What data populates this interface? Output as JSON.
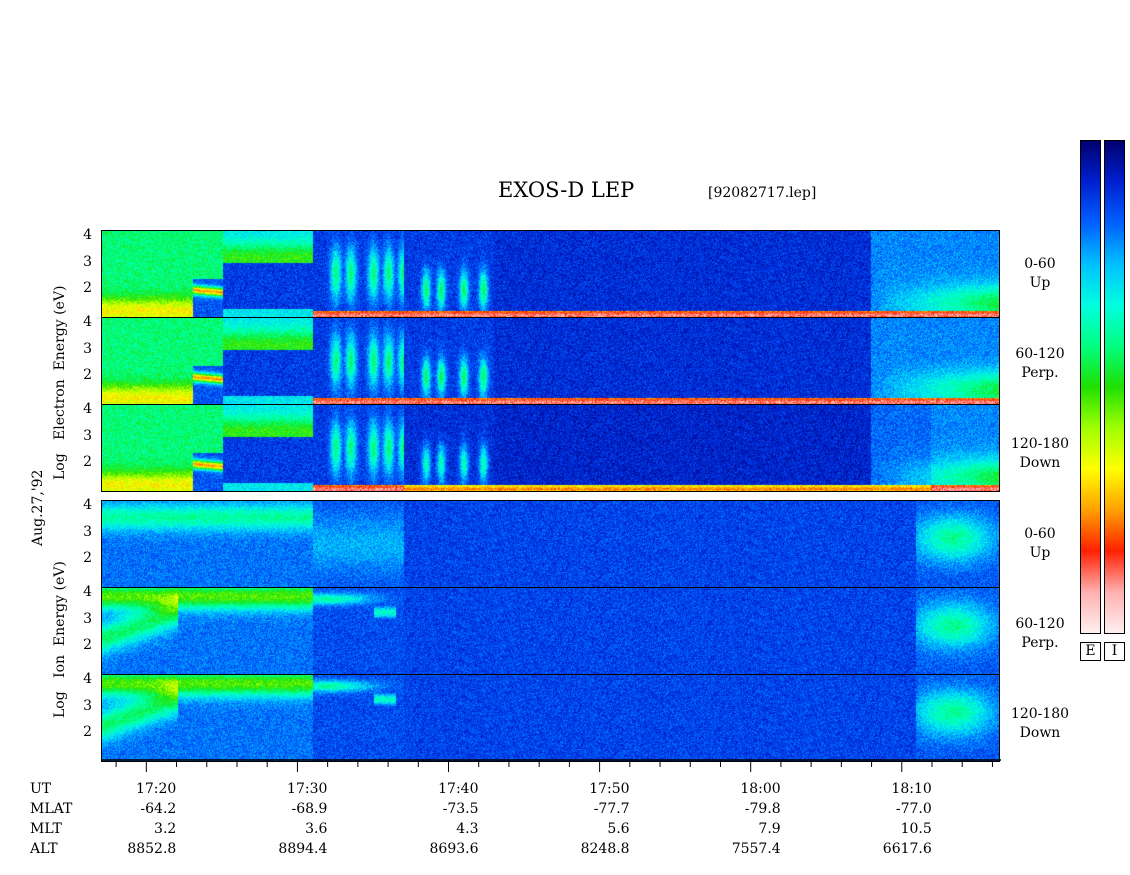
{
  "header": {
    "title": "EXOS-D LEP",
    "filename": "[92082717.lep]"
  },
  "side_date": "Aug.27,'92",
  "electron_axis_label": [
    "Log",
    "Electron",
    "Energy",
    "(eV)"
  ],
  "ion_axis_label": [
    "Log",
    "Ion",
    "Energy",
    "(eV)"
  ],
  "pitch_labels": [
    {
      "range": "0-60",
      "dir": "Up"
    },
    {
      "range": "60-120",
      "dir": "Perp."
    },
    {
      "range": "120-180",
      "dir": "Down"
    },
    {
      "range": "0-60",
      "dir": "Up"
    },
    {
      "range": "60-120",
      "dir": "Perp."
    },
    {
      "range": "120-180",
      "dir": "Down"
    }
  ],
  "colorbar_labels": [
    "E",
    "I"
  ],
  "colors": {
    "scale": [
      "#000070",
      "#0020d0",
      "#0060ff",
      "#00c0ff",
      "#00ffe0",
      "#00ff80",
      "#20e000",
      "#a0ff00",
      "#ffff00",
      "#ffa000",
      "#ff2000",
      "#ffb0b0",
      "#fff0f0"
    ]
  },
  "chart_data": {
    "type": "heatmap",
    "x_axis": {
      "label": "UT",
      "ticks": [
        "17:20",
        "17:30",
        "17:40",
        "17:50",
        "18:00",
        "18:10"
      ],
      "range_minutes": [
        17.0,
        76.5
      ]
    },
    "y_ticks": [
      "1",
      "2",
      "3",
      "4"
    ],
    "ylim_log_eV": [
      1,
      4
    ],
    "panels": [
      {
        "species": "Electron",
        "pitch": "0-60 Up"
      },
      {
        "species": "Electron",
        "pitch": "60-120 Perp."
      },
      {
        "species": "Electron",
        "pitch": "120-180 Down"
      },
      {
        "species": "Ion",
        "pitch": "0-60 Up"
      },
      {
        "species": "Ion",
        "pitch": "60-120 Perp."
      },
      {
        "species": "Ion",
        "pitch": "120-180 Down"
      }
    ],
    "ephemeris": {
      "rows": [
        "UT",
        "MLAT",
        "MLT",
        "ALT"
      ],
      "UT": [
        "17:20",
        "17:30",
        "17:40",
        "17:50",
        "18:00",
        "18:10"
      ],
      "MLAT": [
        "-64.2",
        "-68.9",
        "-73.5",
        "-77.7",
        "-79.8",
        "-77.0"
      ],
      "MLT": [
        "3.2",
        "3.6",
        "4.3",
        "5.6",
        "7.9",
        "10.5"
      ],
      "ALT": [
        "8852.8",
        "8894.4",
        "8693.6",
        "8248.8",
        "7557.4",
        "6617.6"
      ]
    }
  }
}
